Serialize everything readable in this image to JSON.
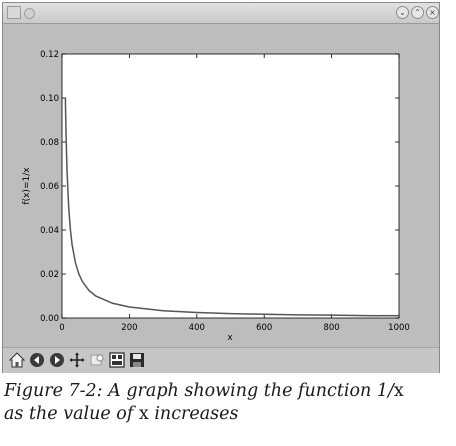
{
  "window": {
    "titlebar_icons": [
      "app-icon",
      "minimize-icon",
      "maximize-icon",
      "close-icon"
    ]
  },
  "toolbar": {
    "buttons": [
      "home-icon",
      "back-icon",
      "forward-icon",
      "pan-icon",
      "zoom-icon",
      "subplots-icon",
      "save-icon"
    ]
  },
  "chart_data": {
    "type": "line",
    "title": "",
    "xlabel": "x",
    "ylabel": "f(x)=1/x",
    "xlim": [
      0,
      1000
    ],
    "ylim": [
      0.0,
      0.12
    ],
    "x_ticks": [
      0,
      200,
      400,
      600,
      800,
      1000
    ],
    "y_ticks": [
      0.0,
      0.02,
      0.04,
      0.06,
      0.08,
      0.1,
      0.12
    ],
    "x_tick_labels": [
      "0",
      "200",
      "400",
      "600",
      "800",
      "1000"
    ],
    "y_tick_labels": [
      "0.00",
      "0.02",
      "0.04",
      "0.06",
      "0.08",
      "0.10",
      "0.12"
    ],
    "function": "1/x",
    "x": [
      10,
      12,
      15,
      20,
      25,
      30,
      40,
      50,
      60,
      80,
      100,
      150,
      200,
      300,
      400,
      500,
      600,
      700,
      800,
      900,
      1000
    ],
    "y": [
      0.1,
      0.0833,
      0.0667,
      0.05,
      0.04,
      0.0333,
      0.025,
      0.02,
      0.0167,
      0.0125,
      0.01,
      0.0067,
      0.005,
      0.0033,
      0.0025,
      0.002,
      0.0017,
      0.0014,
      0.0013,
      0.0011,
      0.001
    ],
    "series_color": "#555555",
    "grid": false
  },
  "caption": {
    "part1": "Figure 7-2: A graph showing the function 1/",
    "x1": "x",
    "part2": "as the value of ",
    "x2": "x",
    "part3": " increases"
  }
}
